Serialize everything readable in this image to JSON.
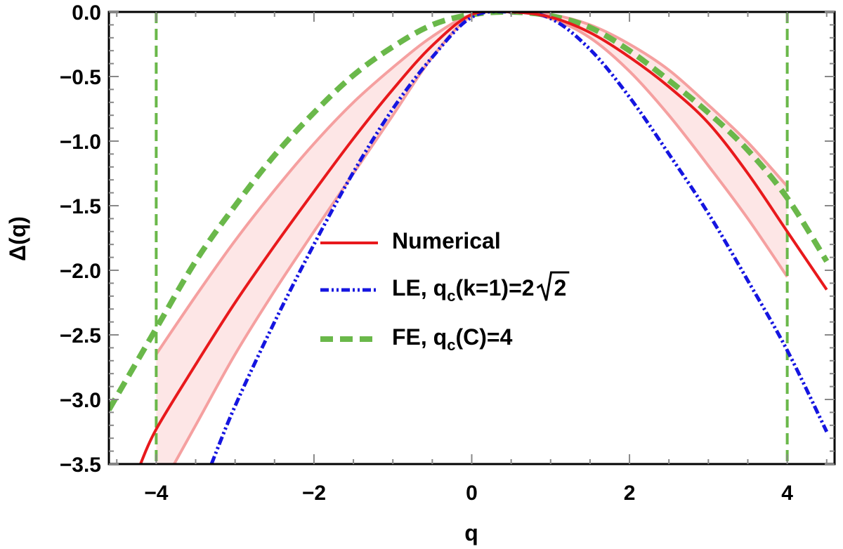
{
  "chart_data": {
    "type": "line",
    "xlabel": "q",
    "ylabel": "Δ(q)",
    "xlim": [
      -4.6,
      4.6
    ],
    "ylim": [
      -3.5,
      0.0
    ],
    "x_ticks": [
      -4,
      -2,
      0,
      2,
      4
    ],
    "x_tick_labels": [
      "−4",
      "−2",
      "0",
      "2",
      "4"
    ],
    "y_ticks": [
      0.0,
      -0.5,
      -1.0,
      -1.5,
      -2.0,
      -2.5,
      -3.0,
      -3.5
    ],
    "y_tick_labels": [
      "0.0",
      "−0.5",
      "−1.0",
      "−1.5",
      "−2.0",
      "−2.5",
      "−3.0",
      "−3.5"
    ],
    "grid": false,
    "legend_position": "center",
    "series": [
      {
        "name": "Numerical",
        "color": "#e8191c",
        "style": "solid",
        "x": [
          -4.2,
          -4.0,
          -3.5,
          -3.0,
          -2.5,
          -2.0,
          -1.5,
          -1.0,
          -0.5,
          0.0,
          0.5,
          1.0,
          1.5,
          2.0,
          2.5,
          3.0,
          3.5,
          4.0,
          4.5
        ],
        "y": [
          -3.5,
          -3.23,
          -2.73,
          -2.25,
          -1.81,
          -1.39,
          -0.98,
          -0.6,
          -0.26,
          -0.02,
          0.0,
          -0.04,
          -0.16,
          -0.35,
          -0.58,
          -0.86,
          -1.25,
          -1.7,
          -2.15
        ]
      },
      {
        "name": "LE, q",
        "name_sub": "c",
        "name_tail": "(k=1)=2",
        "name_root": "2",
        "color": "#1515e0",
        "style": "dash-dot",
        "x": [
          -3.3,
          -3.0,
          -2.5,
          -2.0,
          -1.5,
          -1.0,
          -0.5,
          0.0,
          0.5,
          1.0,
          1.5,
          2.0,
          2.5,
          3.0,
          3.5,
          4.0,
          4.5
        ],
        "y": [
          -3.5,
          -3.05,
          -2.4,
          -1.8,
          -1.24,
          -0.75,
          -0.35,
          -0.04,
          0.0,
          -0.05,
          -0.29,
          -0.66,
          -1.1,
          -1.56,
          -2.08,
          -2.62,
          -3.25
        ]
      },
      {
        "name": "FE, q",
        "name_sub": "c",
        "name_tail": "(C)=4",
        "color": "#6ab84a",
        "style": "dashed",
        "x": [
          -4.6,
          -4.0,
          -3.5,
          -3.0,
          -2.5,
          -2.0,
          -1.5,
          -1.0,
          -0.5,
          0.0,
          0.5,
          1.0,
          1.5,
          2.0,
          2.5,
          3.0,
          3.5,
          4.0,
          4.5
        ],
        "y": [
          -3.08,
          -2.45,
          -1.93,
          -1.5,
          -1.11,
          -0.78,
          -0.49,
          -0.27,
          -0.1,
          -0.02,
          0.0,
          -0.03,
          -0.12,
          -0.3,
          -0.53,
          -0.78,
          -1.07,
          -1.44,
          -1.93
        ]
      }
    ],
    "band": {
      "color": "#f5a0a0",
      "fill": "#fde6e6",
      "x": [
        -4.0,
        -3.5,
        -3.0,
        -2.5,
        -2.0,
        -1.5,
        -1.0,
        -0.5,
        0.0,
        0.5,
        1.0,
        1.5,
        2.0,
        2.5,
        3.0,
        3.5,
        4.0
      ],
      "upper": [
        -2.65,
        -2.2,
        -1.77,
        -1.38,
        -1.02,
        -0.7,
        -0.43,
        -0.19,
        -0.02,
        0.0,
        -0.02,
        -0.1,
        -0.25,
        -0.45,
        -0.72,
        -1.01,
        -1.35
      ],
      "lower": [
        -3.75,
        -3.2,
        -2.65,
        -2.16,
        -1.7,
        -1.25,
        -0.8,
        -0.35,
        -0.03,
        0.0,
        -0.05,
        -0.2,
        -0.46,
        -0.8,
        -1.19,
        -1.6,
        -2.05
      ]
    },
    "vlines": {
      "color": "#6ab84a",
      "x": [
        -4,
        4
      ]
    }
  }
}
